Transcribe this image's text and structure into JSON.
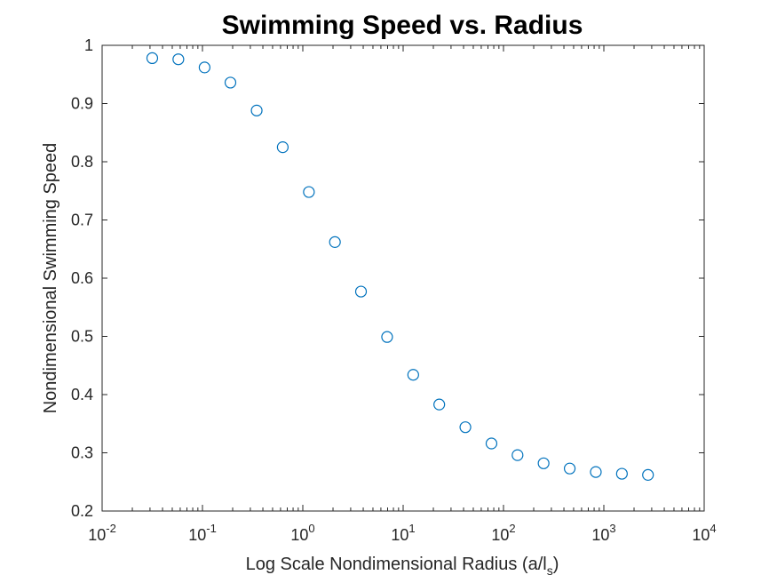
{
  "chart_data": {
    "type": "scatter",
    "title": "Swimming Speed vs. Radius",
    "xlabel_main": "Log Scale Nondimensional Radius (a/l",
    "xlabel_sub": "s",
    "xlabel_close": ")",
    "ylabel": "Nondimensional Swimming Speed",
    "x_scale": "log",
    "xlim": [
      0.01,
      10000
    ],
    "ylim": [
      0.2,
      1.0
    ],
    "grid": false,
    "marker": "open-circle",
    "marker_color": "#0072BD",
    "x_tick_base": "10",
    "x_ticks": [
      {
        "exp": "-2"
      },
      {
        "exp": "-1"
      },
      {
        "exp": "0"
      },
      {
        "exp": "1"
      },
      {
        "exp": "2"
      },
      {
        "exp": "3"
      },
      {
        "exp": "4"
      }
    ],
    "y_ticks": [
      "0.2",
      "0.3",
      "0.4",
      "0.5",
      "0.6",
      "0.7",
      "0.8",
      "0.9",
      "1"
    ],
    "x": [
      0.0316,
      0.0575,
      0.105,
      0.19,
      0.347,
      0.631,
      1.15,
      2.09,
      3.8,
      6.92,
      12.6,
      22.9,
      41.7,
      75.9,
      138,
      251,
      457,
      832,
      1514,
      2754
    ],
    "y": [
      0.978,
      0.976,
      0.962,
      0.936,
      0.888,
      0.825,
      0.748,
      0.662,
      0.577,
      0.499,
      0.434,
      0.383,
      0.344,
      0.316,
      0.296,
      0.282,
      0.273,
      0.267,
      0.264,
      0.262
    ]
  }
}
